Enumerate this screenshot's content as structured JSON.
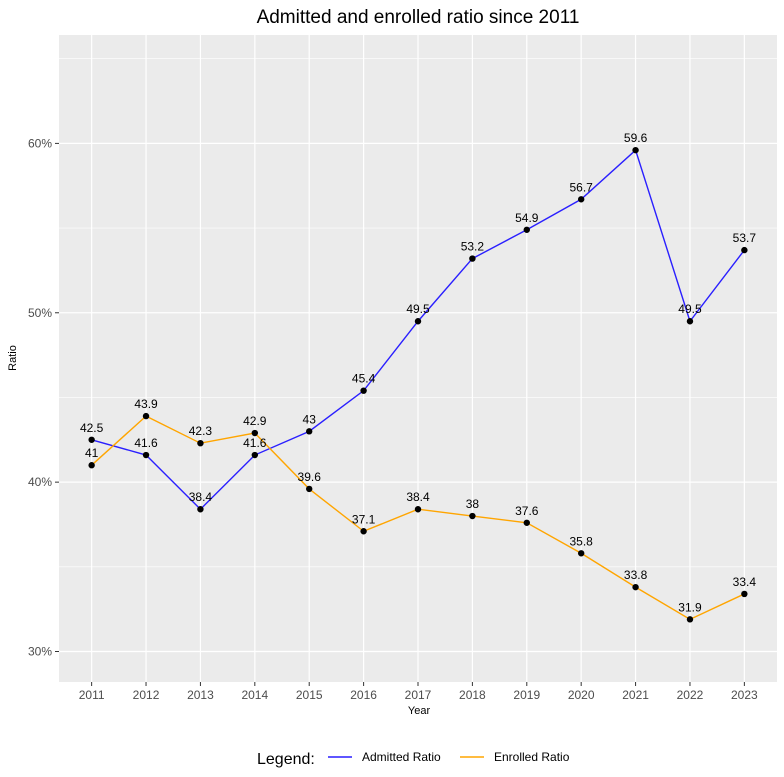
{
  "chart_data": {
    "type": "line",
    "title": "Admitted and enrolled ratio since 2011",
    "xlabel": "Year",
    "ylabel": "Ratio",
    "x": [
      2011,
      2012,
      2013,
      2014,
      2015,
      2016,
      2017,
      2018,
      2019,
      2020,
      2021,
      2022,
      2023
    ],
    "x_tick_labels": [
      "2011",
      "2012",
      "2013",
      "2014",
      "2015",
      "2016",
      "2017",
      "2018",
      "2019",
      "2020",
      "2021",
      "2022",
      "2023"
    ],
    "y_ticks": [
      30,
      40,
      50,
      60
    ],
    "y_tick_labels": [
      "30%",
      "40%",
      "50%",
      "60%"
    ],
    "ylim": [
      28.2,
      66.4
    ],
    "grid": true,
    "legend_position": "bottom",
    "legend_title": "Legend:",
    "series": [
      {
        "name": "Admitted Ratio",
        "color": "#2a1fff",
        "values": [
          42.5,
          41.6,
          38.4,
          41.6,
          43,
          45.4,
          49.5,
          53.2,
          54.9,
          56.7,
          59.6,
          49.5,
          53.7
        ],
        "labels": [
          "42.5",
          "41.6",
          "38.4",
          "41.6",
          "43",
          "45.4",
          "49.5",
          "53.2",
          "54.9",
          "56.7",
          "59.6",
          "49.5",
          "53.7"
        ]
      },
      {
        "name": "Enrolled Ratio",
        "color": "#ffa500",
        "values": [
          41,
          43.9,
          42.3,
          42.9,
          39.6,
          37.1,
          38.4,
          38,
          37.6,
          35.8,
          33.8,
          31.9,
          33.4
        ],
        "labels": [
          "41",
          "43.9",
          "42.3",
          "42.9",
          "39.6",
          "37.1",
          "38.4",
          "38",
          "37.6",
          "35.8",
          "33.8",
          "31.9",
          "33.4"
        ]
      }
    ]
  }
}
